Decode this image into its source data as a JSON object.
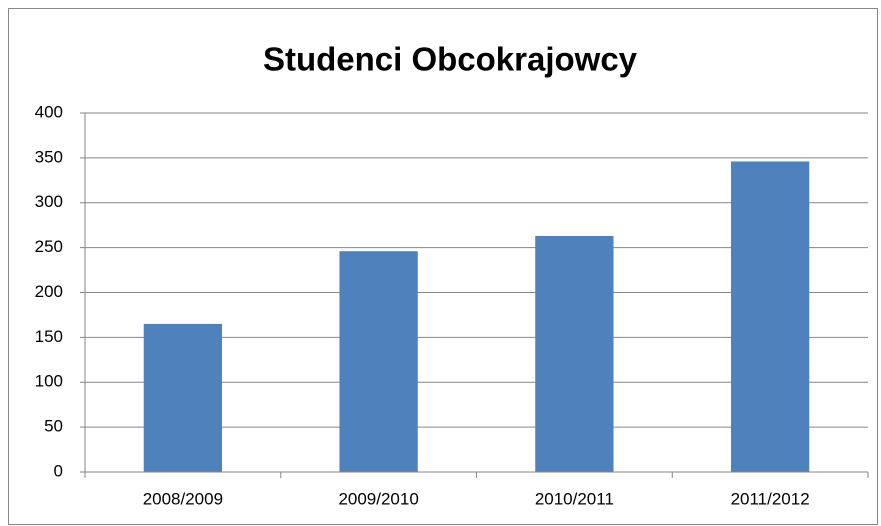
{
  "chart_data": {
    "type": "bar",
    "title": "Studenci Obcokrajowcy",
    "categories": [
      "2008/2009",
      "2009/2010",
      "2010/2011",
      "2011/2012"
    ],
    "values": [
      165,
      246,
      263,
      346
    ],
    "color": "#4f81bd",
    "ylim": [
      0,
      400
    ],
    "yticks": [
      0,
      50,
      100,
      150,
      200,
      250,
      300,
      350,
      400
    ],
    "grid": true
  }
}
